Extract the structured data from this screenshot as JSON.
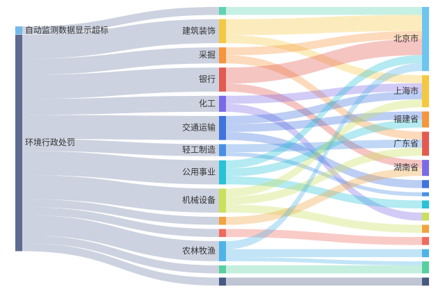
{
  "chart_data": {
    "type": "sankey",
    "title": "",
    "nodes": [
      {
        "name": "自动监测数据显示超标",
        "label": "自动监测数据显示超标",
        "col": 0,
        "color": "#73b9ea",
        "label_side": "right"
      },
      {
        "name": "环境行政处罚",
        "label": "环境行政处罚",
        "col": 0,
        "color": "#5d6b8f",
        "label_side": "right"
      },
      {
        "name": "n1",
        "label": "",
        "col": 1,
        "color": "#5fd3b1"
      },
      {
        "name": "建筑装饰",
        "label": "建筑装饰",
        "col": 1,
        "color": "#f5c842",
        "label_side": "left"
      },
      {
        "name": "采掘",
        "label": "采掘",
        "col": 1,
        "color": "#f6953d",
        "label_side": "left"
      },
      {
        "name": "银行",
        "label": "银行",
        "col": 1,
        "color": "#e35a50",
        "label_side": "left"
      },
      {
        "name": "化工",
        "label": "化工",
        "col": 1,
        "color": "#7b6ae6",
        "label_side": "left"
      },
      {
        "name": "交通运输",
        "label": "交通运输",
        "col": 1,
        "color": "#3f73dd",
        "label_side": "left"
      },
      {
        "name": "轻工制造",
        "label": "轻工制造",
        "col": 1,
        "color": "#4a90e2",
        "label_side": "left"
      },
      {
        "name": "公用事业",
        "label": "公用事业",
        "col": 1,
        "color": "#27c2d6",
        "label_side": "left"
      },
      {
        "name": "机械设备",
        "label": "机械设备",
        "col": 1,
        "color": "#c9e05c",
        "label_side": "left"
      },
      {
        "name": "n10",
        "label": "",
        "col": 1,
        "color": "#f1a340"
      },
      {
        "name": "n11",
        "label": "",
        "col": 1,
        "color": "#ef6b5e"
      },
      {
        "name": "农林牧渔",
        "label": "农林牧渔",
        "col": 1,
        "color": "#4fb3e8",
        "label_side": "left"
      },
      {
        "name": "n13",
        "label": "",
        "col": 1,
        "color": "#57d0a0"
      },
      {
        "name": "n14",
        "label": "",
        "col": 1,
        "color": "#475a82"
      },
      {
        "name": "北京市",
        "label": "北京市",
        "col": 2,
        "color": "#6ec5ef",
        "label_side": "left"
      },
      {
        "name": "上海市",
        "label": "上海市",
        "col": 2,
        "color": "#f5c842",
        "label_side": "left"
      },
      {
        "name": "福建省",
        "label": "福建省",
        "col": 2,
        "color": "#f6953d",
        "label_side": "left"
      },
      {
        "name": "广东省",
        "label": "广东省",
        "col": 2,
        "color": "#e35a50",
        "label_side": "left"
      },
      {
        "name": "湖南省",
        "label": "湖南省",
        "col": 2,
        "color": "#7b6ae6",
        "label_side": "left"
      },
      {
        "name": "r6",
        "label": "",
        "col": 2,
        "color": "#3f73dd"
      },
      {
        "name": "r7",
        "label": "",
        "col": 2,
        "color": "#4a90e2"
      },
      {
        "name": "r8",
        "label": "",
        "col": 2,
        "color": "#27c2d6"
      },
      {
        "name": "r9",
        "label": "",
        "col": 2,
        "color": "#c9e05c"
      },
      {
        "name": "r10",
        "label": "",
        "col": 2,
        "color": "#f1a340"
      },
      {
        "name": "r11",
        "label": "",
        "col": 2,
        "color": "#ef6b5e"
      },
      {
        "name": "r12",
        "label": "",
        "col": 2,
        "color": "#4fb3e8"
      },
      {
        "name": "r13",
        "label": "",
        "col": 2,
        "color": "#57d0a0"
      },
      {
        "name": "r14",
        "label": "",
        "col": 2,
        "color": "#475a82"
      }
    ],
    "links": [
      {
        "source": "自动监测数据显示超标",
        "target": "n1",
        "value": 1
      },
      {
        "source": "环境行政处罚",
        "target": "建筑装饰",
        "value": 3
      },
      {
        "source": "环境行政处罚",
        "target": "采掘",
        "value": 2
      },
      {
        "source": "环境行政处罚",
        "target": "银行",
        "value": 3
      },
      {
        "source": "环境行政处罚",
        "target": "化工",
        "value": 2
      },
      {
        "source": "环境行政处罚",
        "target": "交通运输",
        "value": 3
      },
      {
        "source": "环境行政处罚",
        "target": "轻工制造",
        "value": 1.5
      },
      {
        "source": "环境行政处罚",
        "target": "公用事业",
        "value": 3
      },
      {
        "source": "环境行政处罚",
        "target": "机械设备",
        "value": 3
      },
      {
        "source": "环境行政处罚",
        "target": "n10",
        "value": 1
      },
      {
        "source": "环境行政处罚",
        "target": "n11",
        "value": 1
      },
      {
        "source": "环境行政处罚",
        "target": "农林牧渔",
        "value": 2.5
      },
      {
        "source": "环境行政处罚",
        "target": "n13",
        "value": 1
      },
      {
        "source": "环境行政处罚",
        "target": "n14",
        "value": 1
      },
      {
        "source": "n1",
        "target": "北京市",
        "value": 1
      },
      {
        "source": "建筑装饰",
        "target": "北京市",
        "value": 2
      },
      {
        "source": "建筑装饰",
        "target": "上海市",
        "value": 1
      },
      {
        "source": "采掘",
        "target": "北京市",
        "value": 1
      },
      {
        "source": "采掘",
        "target": "广东省",
        "value": 1
      },
      {
        "source": "银行",
        "target": "北京市",
        "value": 2
      },
      {
        "source": "银行",
        "target": "湖南省",
        "value": 1
      },
      {
        "source": "化工",
        "target": "上海市",
        "value": 1
      },
      {
        "source": "化工",
        "target": "r9",
        "value": 1
      },
      {
        "source": "交通运输",
        "target": "上海市",
        "value": 1
      },
      {
        "source": "交通运输",
        "target": "福建省",
        "value": 1
      },
      {
        "source": "交通运输",
        "target": "r6",
        "value": 1
      },
      {
        "source": "轻工制造",
        "target": "广东省",
        "value": 1
      },
      {
        "source": "轻工制造",
        "target": "r7",
        "value": 0.5
      },
      {
        "source": "公用事业",
        "target": "北京市",
        "value": 1
      },
      {
        "source": "公用事业",
        "target": "福建省",
        "value": 1
      },
      {
        "source": "公用事业",
        "target": "r8",
        "value": 1
      },
      {
        "source": "机械设备",
        "target": "上海市",
        "value": 1
      },
      {
        "source": "机械设备",
        "target": "广东省",
        "value": 1
      },
      {
        "source": "机械设备",
        "target": "r10",
        "value": 1
      },
      {
        "source": "n10",
        "target": "湖南省",
        "value": 1
      },
      {
        "source": "n11",
        "target": "r11",
        "value": 1
      },
      {
        "source": "农林牧渔",
        "target": "北京市",
        "value": 1
      },
      {
        "source": "农林牧渔",
        "target": "r12",
        "value": 1
      },
      {
        "source": "农林牧渔",
        "target": "r13",
        "value": 0.5
      },
      {
        "source": "n13",
        "target": "r13",
        "value": 1
      },
      {
        "source": "n14",
        "target": "r14",
        "value": 1
      }
    ]
  }
}
